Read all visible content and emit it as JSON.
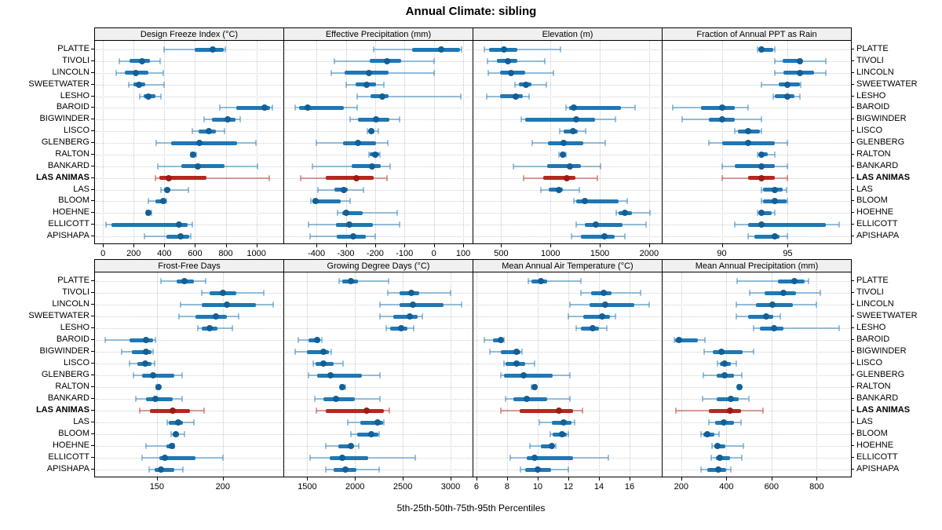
{
  "title": "Annual Climate: sibling",
  "caption": "5th-25th-50th-75th-95th Percentiles",
  "percentile_labels": [
    "5th",
    "25th",
    "50th",
    "75th",
    "95th"
  ],
  "sites": [
    "PLATTE",
    "TIVOLI",
    "LINCOLN",
    "SWEETWATER",
    "LESHO",
    "BAROID",
    "BIGWINDER",
    "LISCO",
    "GLENBERG",
    "RALTON",
    "BANKARD",
    "LAS ANIMAS",
    "LAS",
    "BLOOM",
    "HOEHNE",
    "ELLICOTT",
    "APISHAPA"
  ],
  "highlight_site": "LAS ANIMAS",
  "colors": {
    "normal": "#1f77b4",
    "normal_dot": "#135f96",
    "normal_light": "rgba(31,119,180,0.45)",
    "highlight": "#b5271f",
    "highlight_dot": "#9c1b15",
    "highlight_light": "rgba(181,39,31,0.45)",
    "strip_bg": "#f0f0f0",
    "grid": "#c9c9c9",
    "border": "#000000"
  },
  "chart_data": [
    {
      "type": "dotplot",
      "title": "Design Freeze Index (°C)",
      "grid_row": 0,
      "grid_col": 0,
      "xlim": [
        -52,
        1176
      ],
      "ticks": [
        0,
        200,
        400,
        600,
        800,
        1000
      ],
      "values": [
        [
          400,
          600,
          715,
          785,
          795
        ],
        [
          105,
          175,
          255,
          305,
          375
        ],
        [
          85,
          140,
          215,
          295,
          395
        ],
        [
          170,
          200,
          235,
          275,
          400
        ],
        [
          240,
          265,
          297,
          344,
          380
        ],
        [
          760,
          870,
          1055,
          1090,
          1105
        ],
        [
          658,
          710,
          815,
          866,
          895
        ],
        [
          585,
          625,
          690,
          735,
          790
        ],
        [
          345,
          445,
          630,
          875,
          995
        ],
        [
          573,
          580,
          590,
          600,
          607
        ],
        [
          356,
          510,
          620,
          790,
          1005
        ],
        [
          340,
          370,
          430,
          675,
          1085
        ],
        [
          380,
          400,
          417,
          440,
          555
        ],
        [
          297,
          344,
          392,
          409,
          412
        ],
        [
          285,
          288,
          298,
          309,
          314
        ],
        [
          20,
          55,
          497,
          550,
          585
        ],
        [
          270,
          412,
          505,
          560,
          570
        ]
      ]
    },
    {
      "type": "dotplot",
      "title": "Effective Precipitation (mm)",
      "grid_row": 0,
      "grid_col": 1,
      "xlim": [
        -510,
        132
      ],
      "ticks": [
        -400,
        -300,
        -200,
        -100,
        0,
        100
      ],
      "values": [
        [
          -205,
          -75,
          25,
          90,
          95
        ],
        [
          -340,
          -218,
          -160,
          -111,
          0
        ],
        [
          -350,
          -305,
          -222,
          -155,
          0
        ],
        [
          -300,
          -267,
          -228,
          -196,
          -169
        ],
        [
          -260,
          -215,
          -175,
          -153,
          93
        ],
        [
          -473,
          -460,
          -430,
          -307,
          -260
        ],
        [
          -286,
          -258,
          -197,
          -151,
          -118
        ],
        [
          -227,
          -220,
          -213,
          -203,
          -188
        ],
        [
          -400,
          -310,
          -258,
          -196,
          -156
        ],
        [
          -222,
          -218,
          -200,
          -187,
          -184
        ],
        [
          -415,
          -280,
          -211,
          -180,
          -148
        ],
        [
          -453,
          -369,
          -265,
          -206,
          -160
        ],
        [
          -396,
          -338,
          -307,
          -293,
          -240
        ],
        [
          -420,
          -413,
          -404,
          -318,
          -286
        ],
        [
          -327,
          -313,
          -298,
          -243,
          -124
        ],
        [
          -427,
          -333,
          -289,
          -209,
          -118
        ],
        [
          -422,
          -331,
          -274,
          -233,
          -200
        ]
      ]
    },
    {
      "type": "dotplot",
      "title": "Elevation (m)",
      "grid_row": 0,
      "grid_col": 2,
      "xlim": [
        218,
        2128
      ],
      "ticks": [
        500,
        1000,
        1500,
        2000
      ],
      "values": [
        [
          330,
          375,
          525,
          660,
          1100
        ],
        [
          360,
          460,
          570,
          665,
          940
        ],
        [
          368,
          487,
          600,
          740,
          1030
        ],
        [
          640,
          680,
          750,
          805,
          955
        ],
        [
          355,
          490,
          645,
          717,
          785
        ],
        [
          1160,
          1190,
          1235,
          1715,
          1860
        ],
        [
          706,
          740,
          1260,
          1452,
          1658
        ],
        [
          1095,
          1135,
          1227,
          1280,
          1360
        ],
        [
          817,
          976,
          1135,
          1333,
          1558
        ],
        [
          1087,
          1100,
          1127,
          1153,
          1161
        ],
        [
          624,
          970,
          1200,
          1307,
          1505
        ],
        [
          730,
          923,
          1167,
          1254,
          1473
        ],
        [
          905,
          980,
          1082,
          1122,
          1294
        ],
        [
          1235,
          1260,
          1352,
          1690,
          1775
        ],
        [
          1670,
          1690,
          1756,
          1828,
          2008
        ],
        [
          1262,
          1346,
          1460,
          1730,
          1968
        ],
        [
          1214,
          1307,
          1545,
          1650,
          1756
        ]
      ]
    },
    {
      "type": "dotplot",
      "title": "Fraction of Annual PPT as Rain",
      "grid_row": 0,
      "grid_col": 3,
      "xlim": [
        85.5,
        99.8
      ],
      "ticks": [
        90,
        95
      ],
      "values": [
        [
          92.7,
          92.9,
          93.0,
          93.9,
          94.0
        ],
        [
          94.0,
          94.6,
          95.9,
          96.1,
          97.9
        ],
        [
          94.0,
          94.7,
          95.9,
          97.0,
          97.9
        ],
        [
          93.0,
          94.3,
          95.0,
          95.9,
          96.0
        ],
        [
          93.9,
          94.0,
          95.0,
          95.5,
          95.9
        ],
        [
          86.3,
          88.4,
          90.0,
          91.0,
          92.0
        ],
        [
          87.0,
          89.0,
          90.0,
          91.0,
          93.0
        ],
        [
          91.0,
          91.2,
          92.0,
          92.9,
          93.0
        ],
        [
          89.0,
          90.0,
          92.0,
          94.0,
          95.0
        ],
        [
          92.7,
          92.8,
          93.0,
          93.5,
          94.0
        ],
        [
          90.0,
          91.0,
          93.0,
          94.0,
          95.0
        ],
        [
          90.0,
          92.0,
          93.0,
          94.0,
          95.0
        ],
        [
          93.0,
          93.1,
          94.0,
          94.6,
          94.9
        ],
        [
          93.0,
          93.1,
          94.0,
          94.9,
          95.0
        ],
        [
          92.7,
          92.8,
          93.0,
          93.8,
          94.0
        ],
        [
          91.0,
          92.0,
          93.0,
          97.9,
          98.9
        ],
        [
          92.0,
          92.5,
          94.0,
          94.4,
          95.0
        ]
      ]
    },
    {
      "type": "dotplot",
      "title": "Frost-Free Days",
      "grid_row": 1,
      "grid_col": 0,
      "xlim": [
        103,
        246
      ],
      "ticks": [
        150,
        200
      ],
      "values": [
        [
          153,
          165,
          171,
          178,
          187
        ],
        [
          184,
          190,
          200,
          210,
          231
        ],
        [
          168,
          184,
          203,
          225,
          238
        ],
        [
          167,
          179,
          195,
          203,
          212
        ],
        [
          181,
          184,
          190,
          196,
          207
        ],
        [
          111,
          129,
          142,
          147,
          149
        ],
        [
          123,
          131,
          142,
          146,
          147
        ],
        [
          129,
          135,
          141,
          146,
          148
        ],
        [
          132,
          139,
          147,
          163,
          169
        ],
        [
          149.5,
          150,
          151,
          151.6,
          152
        ],
        [
          134,
          142,
          149,
          162,
          169
        ],
        [
          137,
          145,
          162,
          175,
          186
        ],
        [
          158,
          159,
          166,
          170,
          178
        ],
        [
          161,
          162,
          164.5,
          167,
          171
        ],
        [
          142,
          157,
          161.5,
          162.5,
          163
        ],
        [
          139,
          152,
          156,
          179,
          200
        ],
        [
          144,
          148,
          153,
          163,
          170
        ]
      ]
    },
    {
      "type": "dotplot",
      "title": "Growing Degree Days (°C)",
      "grid_row": 1,
      "grid_col": 1,
      "xlim": [
        1258,
        3230
      ],
      "ticks": [
        1500,
        2000,
        2500,
        3000
      ],
      "values": [
        [
          1835,
          1863,
          1956,
          2032,
          2351
        ],
        [
          2346,
          2463,
          2591,
          2668,
          3000
        ],
        [
          2264,
          2463,
          2605,
          2927,
          3115
        ],
        [
          2264,
          2400,
          2572,
          2654,
          2706
        ],
        [
          2327,
          2365,
          2482,
          2545,
          2610
        ],
        [
          1410,
          1514,
          1604,
          1636,
          1650
        ],
        [
          1377,
          1500,
          1672,
          1726,
          1751
        ],
        [
          1563,
          1587,
          1672,
          1778,
          1874
        ],
        [
          1514,
          1604,
          1746,
          2073,
          2258
        ],
        [
          1846,
          1855,
          1868,
          1884,
          1896
        ],
        [
          1576,
          1672,
          1800,
          1999,
          2264
        ],
        [
          1595,
          1691,
          2122,
          2305,
          2359
        ],
        [
          1923,
          2059,
          2236,
          2291,
          2305
        ],
        [
          1956,
          2024,
          2174,
          2242,
          2256
        ],
        [
          1696,
          1827,
          1958,
          1991,
          2037
        ],
        [
          1527,
          1732,
          1868,
          2141,
          2632
        ],
        [
          1691,
          1773,
          1896,
          2018,
          2250
        ]
      ]
    },
    {
      "type": "dotplot",
      "title": "Mean Annual Air Temperature (°C)",
      "grid_row": 1,
      "grid_col": 2,
      "xlim": [
        5.8,
        18.1
      ],
      "ticks": [
        6,
        8,
        10,
        12,
        14,
        16
      ],
      "values": [
        [
          9.4,
          9.6,
          10.2,
          10.6,
          12.8
        ],
        [
          12.8,
          13.5,
          14.3,
          14.8,
          16.7
        ],
        [
          12.1,
          13.4,
          14.4,
          16.3,
          17.3
        ],
        [
          12.0,
          13.0,
          14.2,
          14.7,
          15.1
        ],
        [
          12.5,
          12.8,
          13.6,
          14.0,
          14.5
        ],
        [
          6.5,
          7.1,
          7.6,
          7.7,
          7.8
        ],
        [
          6.9,
          7.6,
          8.6,
          8.9,
          9.0
        ],
        [
          7.8,
          7.9,
          8.6,
          9.2,
          9.8
        ],
        [
          7.6,
          7.8,
          9.1,
          11.0,
          12.1
        ],
        [
          9.6,
          9.7,
          9.8,
          9.85,
          9.9
        ],
        [
          7.9,
          8.4,
          9.3,
          10.6,
          12.1
        ],
        [
          7.6,
          8.8,
          11.4,
          12.3,
          12.9
        ],
        [
          10.1,
          10.9,
          11.7,
          12.2,
          12.4
        ],
        [
          10.8,
          11.0,
          11.6,
          11.9,
          12.0
        ],
        [
          9.5,
          10.2,
          10.9,
          11.1,
          11.2
        ],
        [
          8.2,
          9.3,
          9.8,
          12.3,
          14.6
        ],
        [
          8.9,
          9.2,
          10.0,
          10.9,
          12.0
        ]
      ]
    },
    {
      "type": "dotplot",
      "title": "Mean Annual Precipitation (mm)",
      "grid_row": 1,
      "grid_col": 3,
      "xlim": [
        117,
        952
      ],
      "ticks": [
        200,
        400,
        600,
        800
      ],
      "values": [
        [
          446,
          630,
          703,
          747,
          764
        ],
        [
          503,
          570,
          653,
          709,
          815
        ],
        [
          443,
          532,
          605,
          695,
          799
        ],
        [
          445,
          495,
          576,
          608,
          639
        ],
        [
          521,
          549,
          610,
          654,
          899
        ],
        [
          169,
          173,
          191,
          275,
          306
        ],
        [
          302,
          341,
          377,
          472,
          520
        ],
        [
          362,
          370,
          391,
          420,
          443
        ],
        [
          298,
          358,
          391,
          435,
          469
        ],
        [
          451,
          454,
          458,
          461,
          464
        ],
        [
          296,
          356,
          420,
          454,
          498
        ],
        [
          177,
          324,
          416,
          466,
          564
        ],
        [
          321,
          350,
          387,
          435,
          466
        ],
        [
          289,
          298,
          316,
          345,
          368
        ],
        [
          336,
          345,
          362,
          397,
          477
        ],
        [
          333,
          354,
          370,
          416,
          469
        ],
        [
          289,
          316,
          365,
          400,
          420
        ]
      ]
    }
  ]
}
